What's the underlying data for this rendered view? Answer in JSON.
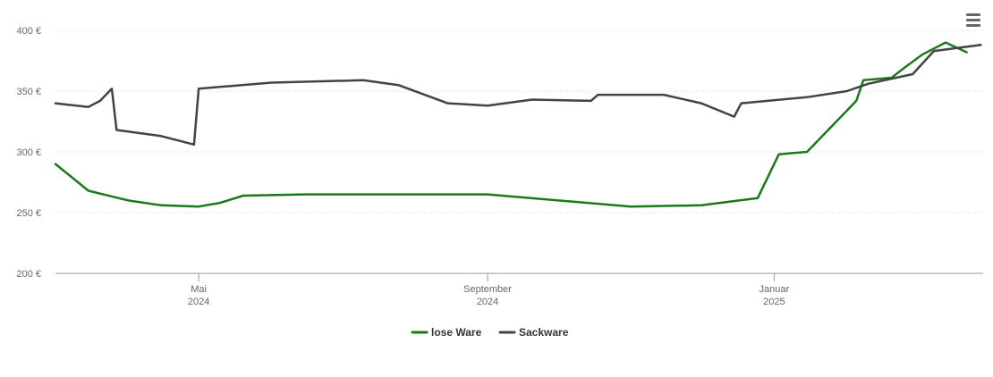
{
  "chart_data": {
    "type": "line",
    "title": "",
    "xlabel": "",
    "ylabel": "",
    "ylim": [
      200,
      400
    ],
    "y_ticks": [
      {
        "value": 200,
        "label": "200 €"
      },
      {
        "value": 250,
        "label": "250 €"
      },
      {
        "value": 300,
        "label": "300 €"
      },
      {
        "value": 350,
        "label": "350 €"
      },
      {
        "value": 400,
        "label": "400 €"
      }
    ],
    "xlim": [
      "2024-03-01",
      "2025-03-31"
    ],
    "x_ticks": [
      {
        "date": "2024-05-01",
        "month": "Mai",
        "year": "2024"
      },
      {
        "date": "2024-09-01",
        "month": "September",
        "year": "2024"
      },
      {
        "date": "2025-01-01",
        "month": "Januar",
        "year": "2025"
      }
    ],
    "grid": true,
    "legend_position": "bottom-center",
    "series": [
      {
        "name": "lose Ware",
        "color": "#1a7a1a",
        "points": [
          {
            "x": "2024-03-01",
            "y": 290
          },
          {
            "x": "2024-03-15",
            "y": 268
          },
          {
            "x": "2024-04-01",
            "y": 260
          },
          {
            "x": "2024-04-15",
            "y": 256
          },
          {
            "x": "2024-05-01",
            "y": 255
          },
          {
            "x": "2024-05-10",
            "y": 258
          },
          {
            "x": "2024-05-20",
            "y": 264
          },
          {
            "x": "2024-06-15",
            "y": 265
          },
          {
            "x": "2024-09-01",
            "y": 265
          },
          {
            "x": "2024-11-01",
            "y": 255
          },
          {
            "x": "2024-12-01",
            "y": 256
          },
          {
            "x": "2024-12-25",
            "y": 262
          },
          {
            "x": "2025-01-03",
            "y": 298
          },
          {
            "x": "2025-01-15",
            "y": 300
          },
          {
            "x": "2025-01-25",
            "y": 320
          },
          {
            "x": "2025-02-05",
            "y": 342
          },
          {
            "x": "2025-02-08",
            "y": 359
          },
          {
            "x": "2025-02-20",
            "y": 361
          },
          {
            "x": "2025-02-26",
            "y": 370
          },
          {
            "x": "2025-03-05",
            "y": 380
          },
          {
            "x": "2025-03-15",
            "y": 390
          },
          {
            "x": "2025-03-24",
            "y": 382
          }
        ]
      },
      {
        "name": "Sackware",
        "color": "#434348",
        "points": [
          {
            "x": "2024-03-01",
            "y": 340
          },
          {
            "x": "2024-03-15",
            "y": 337
          },
          {
            "x": "2024-03-20",
            "y": 342
          },
          {
            "x": "2024-03-25",
            "y": 352
          },
          {
            "x": "2024-03-27",
            "y": 318
          },
          {
            "x": "2024-04-15",
            "y": 313
          },
          {
            "x": "2024-04-29",
            "y": 306
          },
          {
            "x": "2024-05-01",
            "y": 352
          },
          {
            "x": "2024-06-01",
            "y": 357
          },
          {
            "x": "2024-07-10",
            "y": 359
          },
          {
            "x": "2024-07-25",
            "y": 355
          },
          {
            "x": "2024-08-15",
            "y": 340
          },
          {
            "x": "2024-09-01",
            "y": 338
          },
          {
            "x": "2024-09-20",
            "y": 343
          },
          {
            "x": "2024-10-15",
            "y": 342
          },
          {
            "x": "2024-10-18",
            "y": 347
          },
          {
            "x": "2024-11-15",
            "y": 347
          },
          {
            "x": "2024-12-01",
            "y": 340
          },
          {
            "x": "2024-12-15",
            "y": 329
          },
          {
            "x": "2024-12-18",
            "y": 340
          },
          {
            "x": "2025-01-15",
            "y": 345
          },
          {
            "x": "2025-02-01",
            "y": 350
          },
          {
            "x": "2025-02-10",
            "y": 356
          },
          {
            "x": "2025-03-01",
            "y": 364
          },
          {
            "x": "2025-03-10",
            "y": 383
          },
          {
            "x": "2025-03-30",
            "y": 388
          }
        ]
      }
    ]
  },
  "menu": {
    "icon": "hamburger-menu-icon"
  }
}
